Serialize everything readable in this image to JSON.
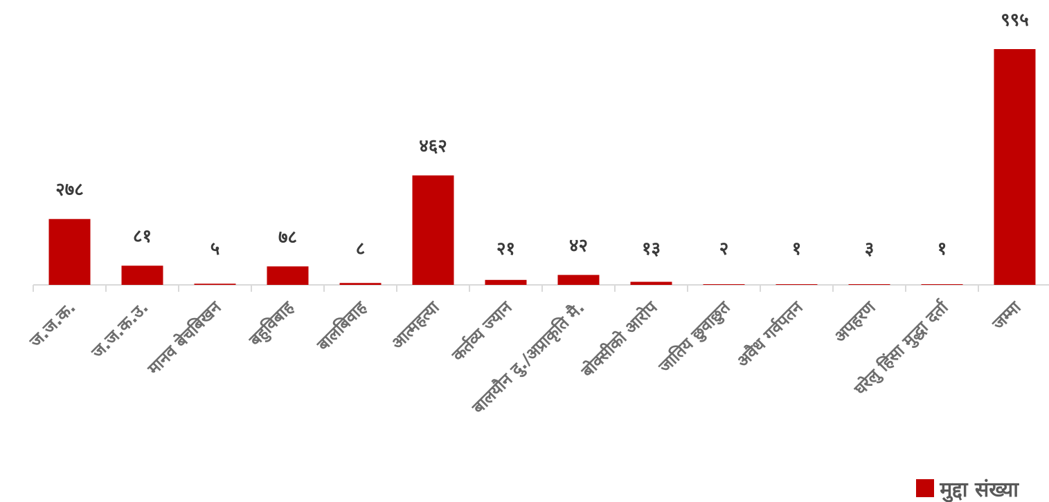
{
  "chart_data": {
    "type": "bar",
    "categories": [
      "ज.ज.क.",
      "ज.ज.क.उ.",
      "मानव बेचबिखन",
      "बहुविबाह",
      "बालबिवाह",
      "आत्महत्या",
      "कर्तव्य ज्यान",
      "बालयौन दु./अप्राकृति मै.",
      "बोक्सीको आरोप",
      "जातिय छुवाछुत",
      "अवैध गर्वपतन",
      "अपहरण",
      "घरेलु हिंसा मुद्धा दर्ता",
      "जम्मा"
    ],
    "series": [
      {
        "name": "मुद्दा संख्या",
        "values": [
          278,
          81,
          5,
          78,
          8,
          462,
          21,
          42,
          13,
          2,
          1,
          3,
          1,
          995
        ],
        "labels": [
          "२७८",
          "८१",
          "५",
          "७८",
          "८",
          "४६२",
          "२१",
          "४२",
          "१३",
          "२",
          "१",
          "३",
          "१",
          "९९५"
        ]
      }
    ],
    "ylim": [
      0,
      995
    ],
    "grid": false,
    "legend_position": "bottom-right",
    "bar_color": "#c00000",
    "axis_color": "#d9d9d9",
    "label_color": "#6d6d6d"
  }
}
